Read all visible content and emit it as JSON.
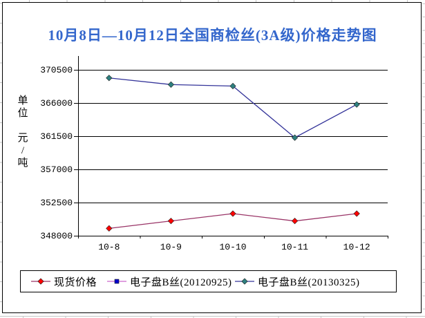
{
  "window": {
    "background": "#ffffff",
    "frame_border_color": "#000000",
    "worksheet_grid_color": "#c6c6c6"
  },
  "chart_data": {
    "type": "line",
    "title": "10月8日—10月12日全国商检丝(3A级)价格走势图",
    "title_color": "#3366cc",
    "y_axis": {
      "unit_label_line1": "单位",
      "unit_label_line2": "元/吨",
      "ticks": [
        348000,
        352500,
        357000,
        361500,
        366000,
        370500
      ],
      "min": 348000,
      "major_unit": 4500
    },
    "categories": [
      "10-8",
      "10-9",
      "10-10",
      "10-11",
      "10-12"
    ],
    "series": [
      {
        "name": "现货价格",
        "line_color": "#993366",
        "marker": "diamond",
        "marker_color": "#ff0000",
        "values": [
          349000,
          350000,
          351000,
          350000,
          351000
        ]
      },
      {
        "name": "电子盘B丝(20120925)",
        "line_color": "#cc66cc",
        "marker": "square",
        "marker_color": "#0000cc",
        "values": []
      },
      {
        "name": "电子盘B丝(20130325)",
        "line_color": "#333399",
        "marker": "diamond",
        "marker_color": "#2e8080",
        "values": [
          369400,
          368500,
          368300,
          361300,
          365800
        ]
      }
    ],
    "grid": true,
    "legend_position": "bottom"
  }
}
